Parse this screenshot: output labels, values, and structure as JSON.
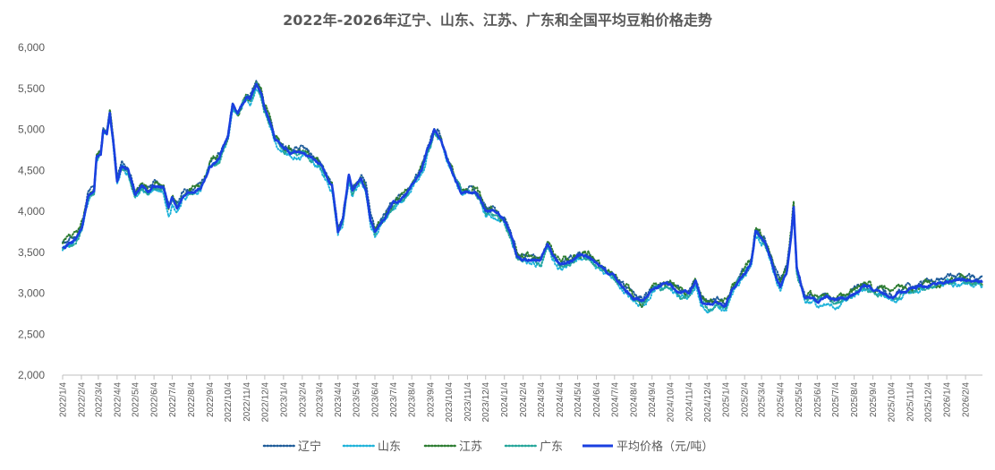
{
  "chart_data": {
    "type": "line",
    "title": "2022年-2026年辽宁、山东、江苏、广东和全国平均豆粕价格走势",
    "xlabel": "",
    "ylabel": "",
    "ylim": [
      2000,
      6000
    ],
    "yticks": [
      "2,000",
      "2,500",
      "3,000",
      "3,500",
      "4,000",
      "4,500",
      "5,000",
      "5,500",
      "6,000"
    ],
    "x_range": [
      "2022-01-04",
      "2026-03-04"
    ],
    "xticks": [
      "2022/1/4",
      "2022/2/4",
      "2022/3/4",
      "2022/4/4",
      "2022/5/4",
      "2022/6/4",
      "2022/7/4",
      "2022/8/4",
      "2022/9/4",
      "2022/10/4",
      "2022/11/4",
      "2022/12/4",
      "2023/1/4",
      "2023/2/4",
      "2023/3/4",
      "2023/4/4",
      "2023/5/4",
      "2023/6/4",
      "2023/7/4",
      "2023/8/4",
      "2023/9/4",
      "2023/10/4",
      "2023/11/4",
      "2023/12/4",
      "2024/1/4",
      "2024/2/4",
      "2024/3/4",
      "2024/4/4",
      "2024/5/4",
      "2024/6/4",
      "2024/7/4",
      "2024/8/4",
      "2024/9/4",
      "2024/10/4",
      "2024/11/4",
      "2024/12/4",
      "2025/1/4",
      "2025/2/4",
      "2025/3/4",
      "2025/4/4",
      "2025/5/4",
      "2025/6/4",
      "2025/7/4",
      "2025/8/4",
      "2025/9/4",
      "2025/10/4",
      "2025/11/4",
      "2025/12/4",
      "2026/1/4",
      "2026/2/4"
    ],
    "grid": false,
    "legend_position": "bottom",
    "base_series": {
      "name": "平均价格（元/吨）",
      "points": [
        [
          "2022-01-04",
          3580
        ],
        [
          "2022-01-15",
          3620
        ],
        [
          "2022-01-25",
          3650
        ],
        [
          "2022-02-05",
          3800
        ],
        [
          "2022-02-15",
          4180
        ],
        [
          "2022-02-25",
          4250
        ],
        [
          "2022-03-01",
          4650
        ],
        [
          "2022-03-08",
          4700
        ],
        [
          "2022-03-12",
          4980
        ],
        [
          "2022-03-18",
          4960
        ],
        [
          "2022-03-23",
          5200
        ],
        [
          "2022-03-28",
          4900
        ],
        [
          "2022-04-04",
          4380
        ],
        [
          "2022-04-12",
          4550
        ],
        [
          "2022-04-22",
          4500
        ],
        [
          "2022-05-04",
          4200
        ],
        [
          "2022-05-15",
          4300
        ],
        [
          "2022-05-25",
          4250
        ],
        [
          "2022-06-04",
          4320
        ],
        [
          "2022-06-20",
          4280
        ],
        [
          "2022-06-28",
          4050
        ],
        [
          "2022-07-04",
          4150
        ],
        [
          "2022-07-12",
          4050
        ],
        [
          "2022-07-20",
          4180
        ],
        [
          "2022-08-04",
          4250
        ],
        [
          "2022-08-20",
          4300
        ],
        [
          "2022-09-04",
          4550
        ],
        [
          "2022-09-20",
          4650
        ],
        [
          "2022-10-04",
          4900
        ],
        [
          "2022-10-12",
          5300
        ],
        [
          "2022-10-20",
          5200
        ],
        [
          "2022-11-04",
          5400
        ],
        [
          "2022-11-10",
          5380
        ],
        [
          "2022-11-20",
          5560
        ],
        [
          "2022-11-28",
          5450
        ],
        [
          "2022-12-04",
          5250
        ],
        [
          "2022-12-12",
          5100
        ],
        [
          "2022-12-20",
          4900
        ],
        [
          "2023-01-04",
          4750
        ],
        [
          "2023-01-20",
          4700
        ],
        [
          "2023-02-04",
          4720
        ],
        [
          "2023-02-20",
          4650
        ],
        [
          "2023-03-04",
          4580
        ],
        [
          "2023-03-15",
          4450
        ],
        [
          "2023-03-25",
          4300
        ],
        [
          "2023-04-04",
          3750
        ],
        [
          "2023-04-12",
          3900
        ],
        [
          "2023-04-22",
          4450
        ],
        [
          "2023-04-28",
          4250
        ],
        [
          "2023-05-04",
          4320
        ],
        [
          "2023-05-12",
          4400
        ],
        [
          "2023-05-20",
          4280
        ],
        [
          "2023-05-28",
          3900
        ],
        [
          "2023-06-04",
          3750
        ],
        [
          "2023-06-12",
          3850
        ],
        [
          "2023-06-20",
          3920
        ],
        [
          "2023-07-04",
          4100
        ],
        [
          "2023-07-20",
          4150
        ],
        [
          "2023-08-04",
          4300
        ],
        [
          "2023-08-20",
          4500
        ],
        [
          "2023-09-04",
          4850
        ],
        [
          "2023-09-10",
          5000
        ],
        [
          "2023-09-20",
          4900
        ],
        [
          "2023-10-04",
          4600
        ],
        [
          "2023-10-15",
          4400
        ],
        [
          "2023-10-25",
          4250
        ],
        [
          "2023-11-04",
          4250
        ],
        [
          "2023-11-15",
          4250
        ],
        [
          "2023-11-25",
          4150
        ],
        [
          "2023-12-04",
          4000
        ],
        [
          "2023-12-15",
          4000
        ],
        [
          "2023-12-25",
          3950
        ],
        [
          "2024-01-04",
          3900
        ],
        [
          "2024-01-15",
          3700
        ],
        [
          "2024-01-25",
          3450
        ],
        [
          "2024-02-04",
          3420
        ],
        [
          "2024-02-20",
          3400
        ],
        [
          "2024-03-04",
          3380
        ],
        [
          "2024-03-15",
          3600
        ],
        [
          "2024-03-25",
          3450
        ],
        [
          "2024-04-04",
          3350
        ],
        [
          "2024-04-20",
          3380
        ],
        [
          "2024-05-04",
          3450
        ],
        [
          "2024-05-20",
          3450
        ],
        [
          "2024-06-04",
          3350
        ],
        [
          "2024-06-20",
          3250
        ],
        [
          "2024-07-04",
          3200
        ],
        [
          "2024-07-20",
          3050
        ],
        [
          "2024-08-04",
          2950
        ],
        [
          "2024-08-20",
          2900
        ],
        [
          "2024-09-04",
          3050
        ],
        [
          "2024-09-20",
          3100
        ],
        [
          "2024-10-04",
          3100
        ],
        [
          "2024-10-20",
          3000
        ],
        [
          "2024-11-04",
          3000
        ],
        [
          "2024-11-15",
          3150
        ],
        [
          "2024-11-25",
          2900
        ],
        [
          "2024-12-04",
          2850
        ],
        [
          "2024-12-20",
          2880
        ],
        [
          "2025-01-04",
          2850
        ],
        [
          "2025-01-15",
          3050
        ],
        [
          "2025-01-25",
          3150
        ],
        [
          "2025-02-04",
          3250
        ],
        [
          "2025-02-15",
          3400
        ],
        [
          "2025-02-22",
          3750
        ],
        [
          "2025-03-01",
          3700
        ],
        [
          "2025-03-08",
          3650
        ],
        [
          "2025-03-18",
          3450
        ],
        [
          "2025-03-28",
          3200
        ],
        [
          "2025-04-04",
          3100
        ],
        [
          "2025-04-15",
          3300
        ],
        [
          "2025-04-22",
          3700
        ],
        [
          "2025-04-26",
          4050
        ],
        [
          "2025-05-01",
          3300
        ],
        [
          "2025-05-04",
          3200
        ],
        [
          "2025-05-15",
          2950
        ],
        [
          "2025-06-04",
          2900
        ],
        [
          "2025-06-20",
          2950
        ],
        [
          "2025-07-04",
          2900
        ],
        [
          "2025-07-20",
          2950
        ],
        [
          "2025-08-04",
          3000
        ],
        [
          "2025-08-20",
          3100
        ],
        [
          "2025-09-04",
          3050
        ],
        [
          "2025-09-20",
          3000
        ],
        [
          "2025-10-04",
          2950
        ],
        [
          "2025-10-20",
          3000
        ],
        [
          "2025-11-04",
          3050
        ],
        [
          "2025-11-20",
          3080
        ],
        [
          "2025-12-04",
          3100
        ],
        [
          "2025-12-20",
          3120
        ],
        [
          "2026-01-04",
          3150
        ],
        [
          "2026-01-20",
          3160
        ],
        [
          "2026-02-04",
          3170
        ],
        [
          "2026-02-20",
          3150
        ],
        [
          "2026-03-04",
          3150
        ]
      ]
    },
    "series": [
      {
        "name": "辽宁",
        "color": "#1F5C99",
        "style": "dotted",
        "offset": 30,
        "noise_amp": 45,
        "seed": 11
      },
      {
        "name": "山东",
        "color": "#1FB3D9",
        "style": "dotted",
        "offset": -40,
        "noise_amp": 45,
        "seed": 23
      },
      {
        "name": "江苏",
        "color": "#2E7D32",
        "style": "dotted",
        "offset": 20,
        "noise_amp": 55,
        "seed": 37
      },
      {
        "name": "广东",
        "color": "#26A69A",
        "style": "dotted",
        "offset": -20,
        "noise_amp": 40,
        "seed": 53
      },
      {
        "name": "平均价格（元/吨）",
        "color": "#1A3FE0",
        "style": "solid",
        "offset": 0,
        "noise_amp": 25,
        "seed": 71
      }
    ]
  }
}
